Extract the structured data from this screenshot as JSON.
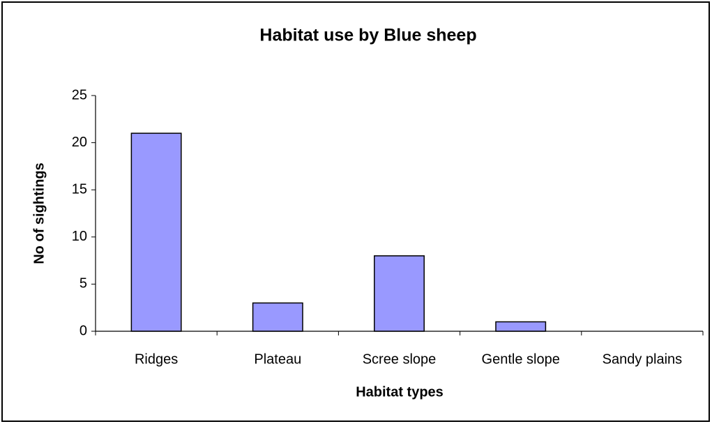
{
  "chart_data": {
    "type": "bar",
    "title": "Habitat use by Blue sheep",
    "x_label": "Habitat types",
    "y_label": "No of sightings",
    "categories": [
      "Ridges",
      "Plateau",
      "Scree slope",
      "Gentle slope",
      "Sandy plains"
    ],
    "values": [
      21,
      3,
      8,
      1,
      0
    ],
    "color": "#9999ff",
    "ylim": [
      0,
      25
    ],
    "yticks": [
      0,
      5,
      10,
      15,
      20,
      25
    ],
    "grid": false
  }
}
